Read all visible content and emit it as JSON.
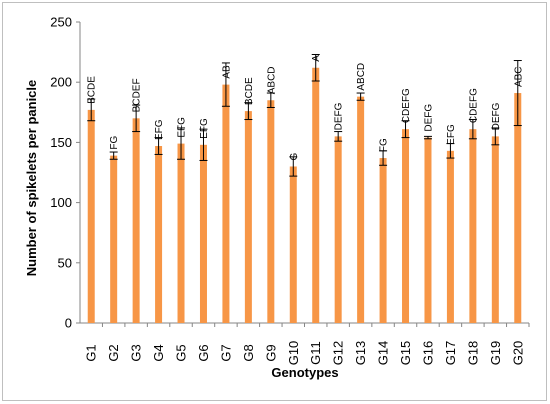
{
  "chart_data": {
    "type": "bar",
    "title": "",
    "xlabel": "Genotypes",
    "ylabel": "Number of spikelets per panicle",
    "ylim": [
      0,
      250
    ],
    "yticks": [
      0,
      50,
      100,
      150,
      200,
      250
    ],
    "grid": false,
    "legend": "none",
    "bar_color": "#F79646",
    "error_color": "#000000",
    "categories": [
      "G1",
      "G2",
      "G3",
      "G4",
      "G5",
      "G6",
      "G7",
      "G8",
      "G9",
      "G10",
      "G11",
      "G12",
      "G13",
      "G14",
      "G15",
      "G16",
      "G17",
      "G18",
      "G19",
      "G20"
    ],
    "values": [
      177,
      139,
      170,
      147,
      149,
      148,
      198,
      176,
      185,
      130,
      212,
      155,
      188,
      137,
      161,
      154,
      143,
      161,
      155,
      191
    ],
    "errors": [
      9,
      3,
      11,
      7,
      13,
      13,
      18,
      7,
      6,
      8,
      11,
      4,
      3,
      6,
      7,
      1,
      6,
      8,
      7,
      27
    ],
    "data_labels": [
      "BCDE",
      "FG",
      "BCDEF",
      "EFG",
      "EFG",
      "EFG",
      "AB",
      "BCDE",
      "ABCD",
      "G",
      "A",
      "DEFG",
      "ABCD",
      "FG",
      "CDEFG",
      "DEFG",
      "EFG",
      "CDEFG",
      "DEFG",
      "ABC"
    ]
  }
}
